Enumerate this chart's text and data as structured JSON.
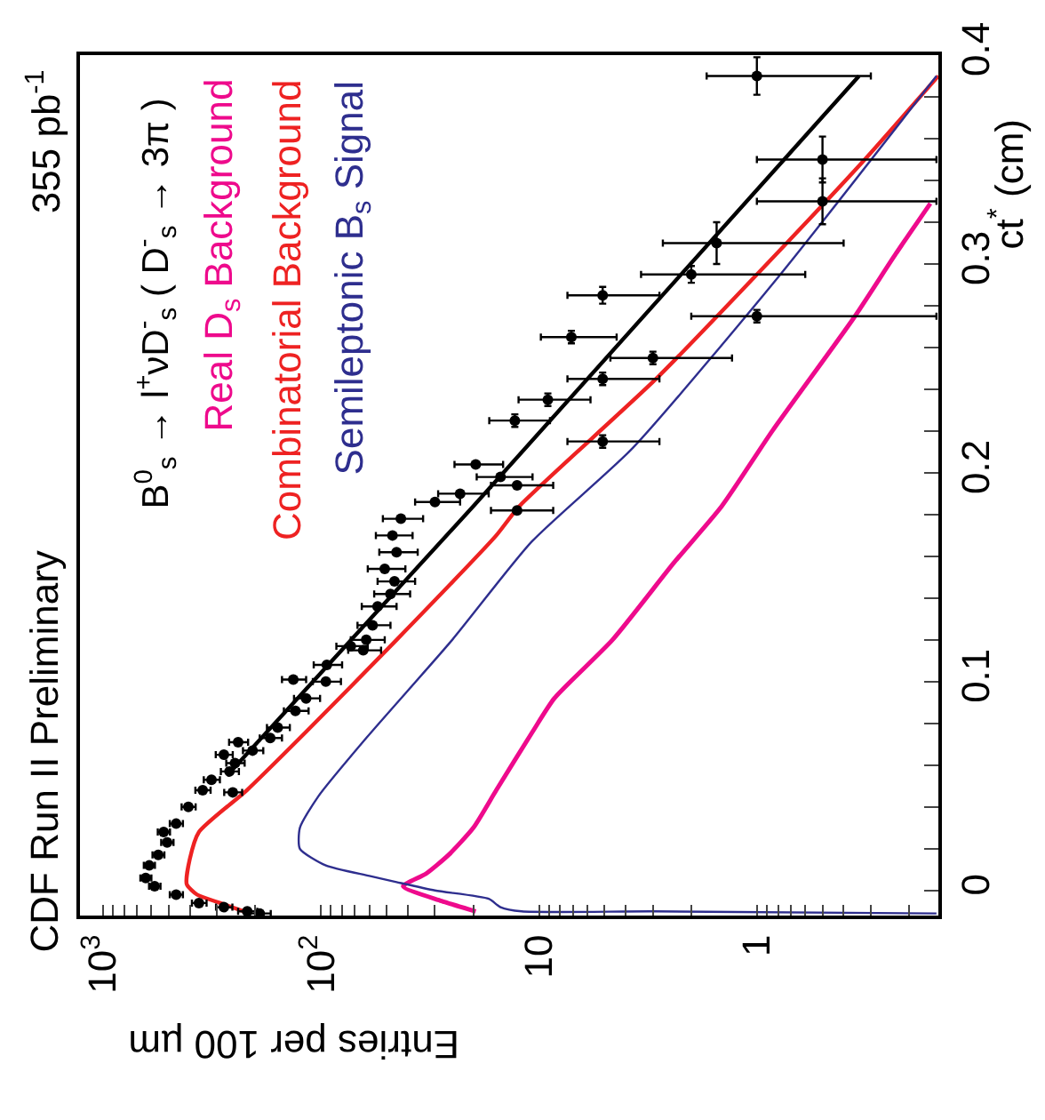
{
  "chart_data": {
    "type": "line",
    "title": "CDF Run II Preliminary",
    "annotations": [
      "355 pb$^{-1}$"
    ],
    "xlabel": "Entries per 100 µm",
    "ylabel": "ct$^{*}$ (cm)",
    "legend_title": "B$^{0}$$_{s}$ → l$^{+}$νD$^{-}$$_{s}$ ( D$^{-}$$_{s}$ → 3π )",
    "legend": "top left",
    "log": "x",
    "xlim": [
      1276,
      0.147
    ],
    "ylim": [
      -0.012,
      0.4
    ],
    "yticks": [
      0,
      {
        "value": 0.02,
        "label": null
      },
      {
        "value": 0.04,
        "label": null
      },
      {
        "value": 0.06,
        "label": null
      },
      {
        "value": 0.08,
        "label": null
      },
      0.1,
      {
        "value": 0.12,
        "label": null
      },
      {
        "value": 0.14,
        "label": null
      },
      {
        "value": 0.16,
        "label": null
      },
      {
        "value": 0.18,
        "label": null
      },
      0.2,
      {
        "value": 0.22,
        "label": null
      },
      {
        "value": 0.24,
        "label": null
      },
      {
        "value": 0.26,
        "label": null
      },
      {
        "value": 0.28,
        "label": null
      },
      0.3,
      {
        "value": 0.32,
        "label": null
      },
      {
        "value": 0.34,
        "label": null
      },
      {
        "value": 0.36,
        "label": null
      },
      {
        "value": 0.38,
        "label": null
      },
      0.4
    ],
    "xticks": [
      {
        "value": 0.2,
        "label": null
      },
      {
        "value": 0.3,
        "label": null
      },
      {
        "value": 0.4,
        "label": null
      },
      {
        "value": 0.5,
        "label": null
      },
      {
        "value": 0.6,
        "label": null
      },
      {
        "value": 0.7,
        "label": null
      },
      {
        "value": 0.8,
        "label": null
      },
      {
        "value": 0.9,
        "label": null
      },
      1,
      {
        "value": 2,
        "label": null
      },
      {
        "value": 3,
        "label": null
      },
      {
        "value": 4,
        "label": null
      },
      {
        "value": 5,
        "label": null
      },
      {
        "value": 6,
        "label": null
      },
      {
        "value": 7,
        "label": null
      },
      {
        "value": 8,
        "label": null
      },
      {
        "value": 9,
        "label": null
      },
      10,
      {
        "value": 20,
        "label": null
      },
      {
        "value": 30,
        "label": null
      },
      {
        "value": 40,
        "label": null
      },
      {
        "value": 50,
        "label": null
      },
      {
        "value": 60,
        "label": null
      },
      {
        "value": 70,
        "label": null
      },
      {
        "value": 80,
        "label": null
      },
      {
        "value": 90,
        "label": null
      },
      {
        "value": 100,
        "label": "10$^{2}$"
      },
      {
        "value": 200,
        "label": null
      },
      {
        "value": 300,
        "label": null
      },
      {
        "value": 400,
        "label": null
      },
      {
        "value": 500,
        "label": null
      },
      {
        "value": 600,
        "label": null
      },
      {
        "value": 700,
        "label": null
      },
      {
        "value": 800,
        "label": null
      },
      {
        "value": 900,
        "label": null
      },
      {
        "value": 1000,
        "label": "10$^{3}$"
      }
    ],
    "series": [
      {
        "name": "Real D$_{s}$ Background",
        "color": "#ee0a8c",
        "marker": "none",
        "line_style": "solid",
        "values": [
          -0.01,
          -0.005,
          0.002,
          0.008,
          0.017,
          0.03,
          0.048,
          0.076,
          0.092,
          0.12,
          0.157,
          0.184,
          0.22,
          0.274,
          0.305,
          0.329
        ],
        "x": [
          19.5,
          28,
          42,
          33,
          26,
          20,
          15.7,
          10.7,
          8.5,
          4.6,
          2.4,
          1.45,
          0.85,
          0.36,
          0.23,
          0.16
        ]
      },
      {
        "name": "Combinatorial Background",
        "color": "#ee2222",
        "marker": "none",
        "line_style": "solid",
        "values": [
          -0.01,
          -0.006,
          -0.002,
          0.003,
          0.015,
          0.028,
          0.048,
          0.076,
          0.12,
          0.17,
          0.184,
          0.245,
          0.31,
          0.35,
          0.39
        ],
        "x": [
          226,
          290,
          370,
          413,
          400,
          363,
          219,
          117,
          45,
          15.7,
          12.3,
          2.9,
          0.73,
          0.32,
          0.147
        ]
      },
      {
        "name": "Semileptonic B$_{s}$ Signal",
        "color": "#2e2e8e",
        "marker": "none",
        "line_style": "solid",
        "values": [
          -0.011,
          -0.01,
          -0.01,
          -0.008,
          -0.004,
          0.0,
          0.004,
          0.007,
          0.012,
          0.02,
          0.03,
          0.045,
          0.073,
          0.12,
          0.167,
          0.212,
          0.295,
          0.39
        ],
        "x": [
          0.15,
          3,
          12,
          15,
          17,
          30,
          45,
          60,
          95,
          125,
          125,
          103,
          62,
          25,
          10.8,
          3.7,
          0.78,
          0.15
        ]
      },
      {
        "color": "#000000",
        "marker": "none",
        "line_style": "solid",
        "values": [
          0.055,
          0.184,
          0.39
        ],
        "x": [
          270,
          20,
          0.34
        ]
      },
      {
        "type": "scatter",
        "color": "#000000",
        "marker": "circle",
        "values": [
          -0.011,
          -0.01,
          -0.008,
          -0.006,
          -0.002,
          0.002,
          0.006,
          0.012,
          0.017,
          0.023,
          0.028,
          0.032,
          0.04,
          0.047,
          0.048,
          0.053,
          0.057,
          0.061,
          0.065,
          0.067,
          0.071,
          0.073,
          0.078,
          0.086,
          0.092,
          0.1,
          0.101,
          0.108,
          0.115,
          0.117,
          0.12,
          0.127,
          0.136,
          0.142,
          0.148,
          0.154,
          0.162,
          0.17,
          0.178,
          0.182,
          0.186,
          0.19,
          0.194,
          0.198,
          0.204,
          0.215,
          0.225,
          0.235,
          0.245,
          0.255,
          0.265,
          0.275,
          0.285,
          0.295,
          0.31,
          0.33,
          0.35,
          0.39
        ],
        "x": [
          191,
          218,
          279,
          363,
          462,
          580,
          637,
          614,
          558,
          508,
          527,
          462,
          406,
          254,
          349,
          318,
          263,
          248,
          279,
          206,
          240,
          171,
          158,
          131,
          117,
          95,
          134,
          94,
          64,
          73,
          62,
          58,
          55,
          48,
          46,
          51,
          45,
          47,
          43,
          12.6,
          30,
          23,
          12.6,
          15,
          19.5,
          5.1,
          12.9,
          9.1,
          5.1,
          3.0,
          7.1,
          1.0,
          5.1,
          2.0,
          1.53,
          0.5,
          0.5,
          1.0
        ],
        "xerrors": [
          [
            170,
            212
          ],
          [
            196,
            240
          ],
          [
            255,
            303
          ],
          [
            335,
            391
          ],
          [
            430,
            494
          ],
          [
            545,
            615
          ],
          [
            600,
            674
          ],
          [
            578,
            650
          ],
          [
            523,
            593
          ],
          [
            475,
            541
          ],
          [
            493,
            561
          ],
          [
            430,
            494
          ],
          [
            376,
            436
          ],
          [
            230,
            278
          ],
          [
            321,
            377
          ],
          [
            291,
            345
          ],
          [
            238,
            288
          ],
          [
            224,
            272
          ],
          [
            254,
            304
          ],
          [
            184,
            228
          ],
          [
            216,
            264
          ],
          [
            151,
            191
          ],
          [
            139,
            177
          ],
          [
            114,
            148
          ],
          [
            101,
            133
          ],
          [
            81,
            109
          ],
          [
            117,
            151
          ],
          [
            80,
            108
          ],
          [
            53,
            75
          ],
          [
            61,
            85
          ],
          [
            51,
            73
          ],
          [
            48,
            68
          ],
          [
            45,
            65
          ],
          [
            39,
            57
          ],
          [
            37,
            55
          ],
          [
            41,
            61
          ],
          [
            36,
            54
          ],
          [
            38,
            56
          ],
          [
            34,
            52
          ],
          [
            8.6,
            16.6
          ],
          [
            23,
            37
          ],
          [
            17,
            29
          ],
          [
            8.6,
            16.6
          ],
          [
            10.7,
            19.3
          ],
          [
            14.6,
            24.4
          ],
          [
            2.8,
            7.4
          ],
          [
            8.9,
            16.9
          ],
          [
            5.8,
            12.4
          ],
          [
            2.8,
            7.4
          ],
          [
            1.3,
            4.7
          ],
          [
            4.4,
            9.8
          ],
          [
            0.15,
            2.0
          ],
          [
            2.8,
            7.4
          ],
          [
            0.6,
            3.4
          ],
          [
            0.4,
            2.7
          ],
          [
            0.15,
            1.0
          ],
          [
            0.15,
            1.0
          ],
          [
            0.3,
            1.7
          ]
        ],
        "errors": [
          null,
          null,
          null,
          null,
          null,
          null,
          null,
          null,
          null,
          null,
          null,
          null,
          null,
          null,
          null,
          null,
          null,
          null,
          null,
          null,
          null,
          null,
          null,
          null,
          null,
          null,
          null,
          null,
          null,
          null,
          null,
          null,
          null,
          null,
          null,
          null,
          null,
          null,
          null,
          null,
          null,
          null,
          null,
          null,
          null,
          0.003,
          0.003,
          0.003,
          0.003,
          0.003,
          0.003,
          0.003,
          0.004,
          0.004,
          0.01,
          0.011,
          0.011,
          0.009
        ]
      }
    ]
  }
}
